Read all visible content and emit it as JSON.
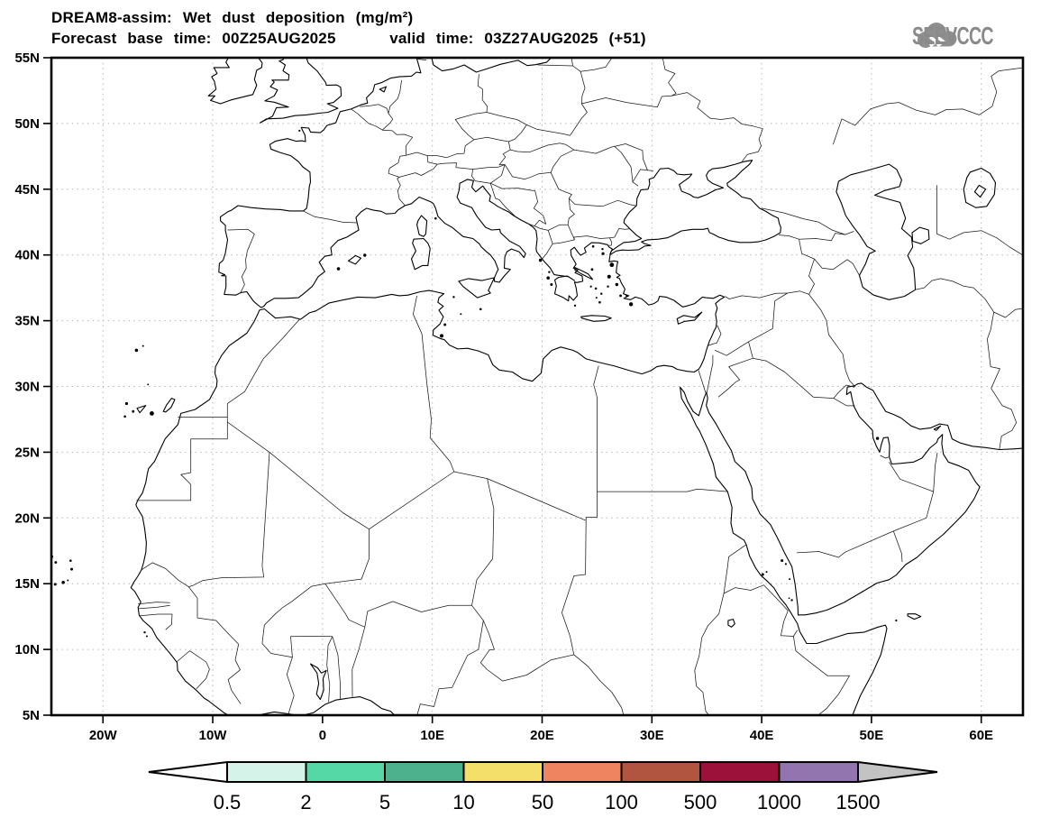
{
  "header": {
    "title_line1": "DREAM8-assim: Wet dust deposition (mg/m²)",
    "title_line2": "Forecast base time: 00Z25AUG2025     valid time: 03Z27AUG2025 (+51)"
  },
  "logo": {
    "text": "SEEVCCC"
  },
  "axes": {
    "lat_labels": [
      "55N",
      "50N",
      "45N",
      "40N",
      "35N",
      "30N",
      "25N",
      "20N",
      "15N",
      "10N",
      "5N"
    ],
    "lon_labels": [
      "20W",
      "10W",
      "0",
      "10E",
      "20E",
      "30E",
      "40E",
      "50E",
      "60E"
    ]
  },
  "legend": {
    "labels": [
      "0.5",
      "2",
      "5",
      "10",
      "50",
      "100",
      "500",
      "1000",
      "1500"
    ],
    "segment_colors": [
      "#d5f3e8",
      "#55d8a5",
      "#4cb18c",
      "#f3df69",
      "#ee8560",
      "#b15440",
      "#9c1139",
      "#9274af"
    ],
    "left_arrow_color": "#ffffff",
    "right_arrow_color": "#c3c3c3",
    "outline_color": "#000000"
  },
  "map": {
    "frame_color": "#000000",
    "grid_color": "#b5b5b5",
    "coast_color": "#000000",
    "border_color": "#1a1a1a"
  }
}
